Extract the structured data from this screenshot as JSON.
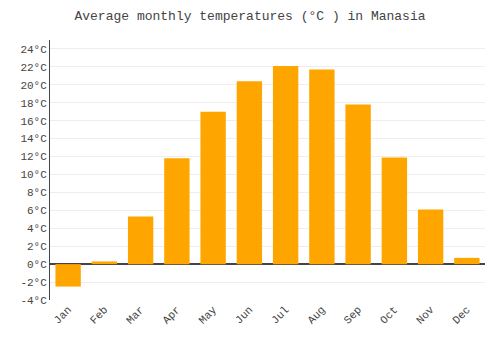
{
  "chart_data": {
    "type": "bar",
    "title": "Average monthly temperatures (°C ) in Manasia",
    "categories": [
      "Jan",
      "Feb",
      "Mar",
      "Apr",
      "May",
      "Jun",
      "Jul",
      "Aug",
      "Sep",
      "Oct",
      "Nov",
      "Dec"
    ],
    "values": [
      -2.5,
      0.3,
      5.3,
      11.8,
      17.0,
      20.4,
      22.1,
      21.7,
      17.8,
      11.9,
      6.1,
      0.7
    ],
    "color": "#FFA500",
    "ylim": [
      -4,
      25
    ],
    "yticks": [
      {
        "value": -4,
        "label": "-4°C"
      },
      {
        "value": -2,
        "label": "-2°C"
      },
      {
        "value": 0,
        "label": "0°C"
      },
      {
        "value": 2,
        "label": "2°C"
      },
      {
        "value": 4,
        "label": "4°C"
      },
      {
        "value": 6,
        "label": "6°C"
      },
      {
        "value": 8,
        "label": "8°C"
      },
      {
        "value": 10,
        "label": "10°C"
      },
      {
        "value": 12,
        "label": "12°C"
      },
      {
        "value": 14,
        "label": "14°C"
      },
      {
        "value": 16,
        "label": "16°C"
      },
      {
        "value": 18,
        "label": "18°C"
      },
      {
        "value": 20,
        "label": "20°C"
      },
      {
        "value": 22,
        "label": "22°C"
      },
      {
        "value": 24,
        "label": "24°C"
      }
    ],
    "grid": true
  }
}
